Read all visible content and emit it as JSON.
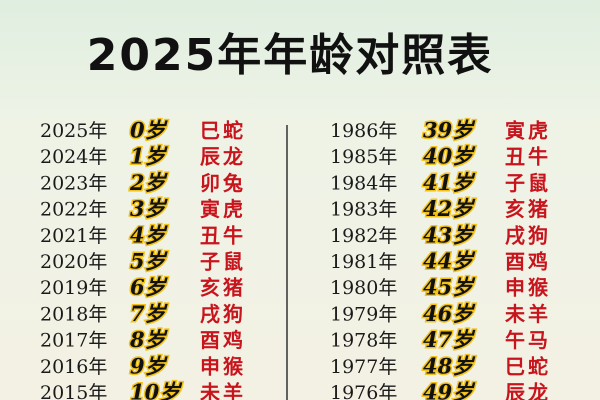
{
  "title": "2025年年龄对照表",
  "columns": [
    {
      "rows": [
        [
          "2025年",
          "0岁",
          "巳蛇"
        ],
        [
          "2024年",
          "1岁",
          "辰龙"
        ],
        [
          "2023年",
          "2岁",
          "卯兔"
        ],
        [
          "2022年",
          "3岁",
          "寅虎"
        ],
        [
          "2021年",
          "4岁",
          "丑牛"
        ],
        [
          "2020年",
          "5岁",
          "子鼠"
        ],
        [
          "2019年",
          "6岁",
          "亥猪"
        ],
        [
          "2018年",
          "7岁",
          "戌狗"
        ],
        [
          "2017年",
          "8岁",
          "酉鸡"
        ],
        [
          "2016年",
          "9岁",
          "申猴"
        ],
        [
          "2015年",
          "10岁",
          "未羊"
        ]
      ]
    },
    {
      "rows": [
        [
          "1986年",
          "39岁",
          "寅虎"
        ],
        [
          "1985年",
          "40岁",
          "丑牛"
        ],
        [
          "1984年",
          "41岁",
          "子鼠"
        ],
        [
          "1983年",
          "42岁",
          "亥猪"
        ],
        [
          "1982年",
          "43岁",
          "戌狗"
        ],
        [
          "1981年",
          "44岁",
          "酉鸡"
        ],
        [
          "1980年",
          "45岁",
          "申猴"
        ],
        [
          "1979年",
          "46岁",
          "未羊"
        ],
        [
          "1978年",
          "47岁",
          "午马"
        ],
        [
          "1977年",
          "48岁",
          "巳蛇"
        ],
        [
          "1976年",
          "49岁",
          "辰龙"
        ]
      ]
    }
  ]
}
